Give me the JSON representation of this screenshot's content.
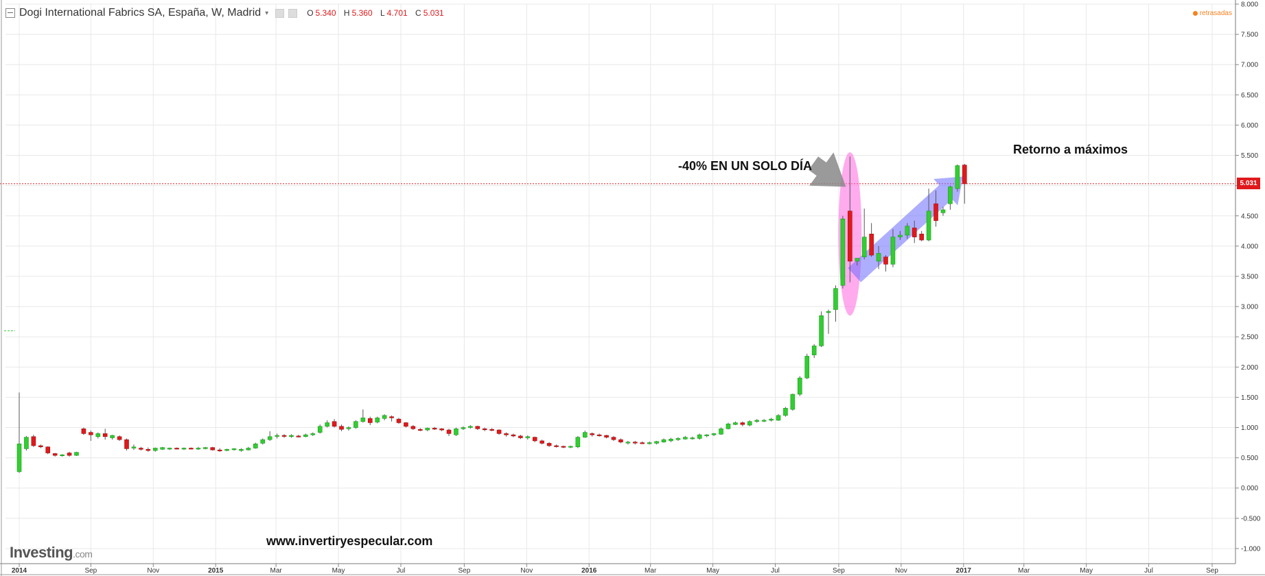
{
  "header": {
    "title": "Dogi International Fabrics SA, España, W, Madrid",
    "dropdown_glyph": "▾",
    "ohlc": [
      {
        "key": "O",
        "value": "5.340"
      },
      {
        "key": "H",
        "value": "5.360"
      },
      {
        "key": "L",
        "value": "4.701"
      },
      {
        "key": "C",
        "value": "5.031"
      }
    ]
  },
  "delayed_label": "retrasadas",
  "brand": {
    "name": "Investing",
    "suffix": ".com"
  },
  "website": "www.invertiryespecular.com",
  "annotations": {
    "drop_label": "-40% EN UN SOLO DÍA",
    "return_label": "Retorno a máximos"
  },
  "current_price_label": "5.031",
  "colors": {
    "up": "#32cd32",
    "down": "#e0191c",
    "grid": "#e8e8e8",
    "price_line": "#e0191c",
    "ellipse": "#ff66e0",
    "up_arrow": "#6b6bff",
    "drop_arrow": "#888888"
  },
  "chart_data": {
    "type": "candlestick",
    "interval": "weekly",
    "ylim": [
      -1.25,
      8.0
    ],
    "y_ticks": [
      -1.0,
      -0.5,
      0.0,
      0.5,
      1.0,
      1.5,
      2.0,
      2.5,
      3.0,
      3.5,
      4.0,
      4.5,
      5.0,
      5.5,
      6.0,
      6.5,
      7.0,
      7.5,
      8.0
    ],
    "y_tick_labels": [
      "-1.000",
      "-0.500",
      "0.000",
      "0.500",
      "1.000",
      "1.500",
      "2.000",
      "2.500",
      "3.000",
      "3.500",
      "4.000",
      "4.500",
      "5.000",
      "5.500",
      "6.000",
      "6.500",
      "7.000",
      "7.500",
      "8.000"
    ],
    "x_axis_labels": [
      {
        "label": "2014",
        "date": "2014-06-23",
        "bold": true
      },
      {
        "label": "Sep",
        "date": "2014-09-01",
        "bold": false
      },
      {
        "label": "Nov",
        "date": "2014-11-01",
        "bold": false
      },
      {
        "label": "2015",
        "date": "2015-01-01",
        "bold": true
      },
      {
        "label": "Mar",
        "date": "2015-03-01",
        "bold": false
      },
      {
        "label": "May",
        "date": "2015-05-01",
        "bold": false
      },
      {
        "label": "Jul",
        "date": "2015-07-01",
        "bold": false
      },
      {
        "label": "Sep",
        "date": "2015-09-01",
        "bold": false
      },
      {
        "label": "Nov",
        "date": "2015-11-01",
        "bold": false
      },
      {
        "label": "2016",
        "date": "2016-01-01",
        "bold": true
      },
      {
        "label": "Mar",
        "date": "2016-03-01",
        "bold": false
      },
      {
        "label": "May",
        "date": "2016-05-01",
        "bold": false
      },
      {
        "label": "Jul",
        "date": "2016-07-01",
        "bold": false
      },
      {
        "label": "Sep",
        "date": "2016-09-01",
        "bold": false
      },
      {
        "label": "Nov",
        "date": "2016-11-01",
        "bold": false
      },
      {
        "label": "2017",
        "date": "2017-01-01",
        "bold": true
      },
      {
        "label": "Mar",
        "date": "2017-03-01",
        "bold": false
      },
      {
        "label": "May",
        "date": "2017-05-01",
        "bold": false
      },
      {
        "label": "Jul",
        "date": "2017-07-01",
        "bold": false
      },
      {
        "label": "Sep",
        "date": "2017-09-01",
        "bold": false
      }
    ],
    "current_price": 5.031,
    "candles": [
      {
        "date": "2014-06-23",
        "o": 0.27,
        "h": 1.58,
        "l": 0.25,
        "c": 0.73
      },
      {
        "date": "2014-06-30",
        "o": 0.65,
        "h": 0.86,
        "l": 0.62,
        "c": 0.84
      },
      {
        "date": "2014-07-07",
        "o": 0.85,
        "h": 0.88,
        "l": 0.68,
        "c": 0.7
      },
      {
        "date": "2014-07-14",
        "o": 0.7,
        "h": 0.72,
        "l": 0.66,
        "c": 0.68
      },
      {
        "date": "2014-07-21",
        "o": 0.68,
        "h": 0.69,
        "l": 0.56,
        "c": 0.58
      },
      {
        "date": "2014-07-28",
        "o": 0.57,
        "h": 0.58,
        "l": 0.52,
        "c": 0.54
      },
      {
        "date": "2014-08-04",
        "o": 0.54,
        "h": 0.56,
        "l": 0.52,
        "c": 0.55
      },
      {
        "date": "2014-08-11",
        "o": 0.58,
        "h": 0.6,
        "l": 0.52,
        "c": 0.54
      },
      {
        "date": "2014-08-18",
        "o": 0.54,
        "h": 0.6,
        "l": 0.53,
        "c": 0.59
      },
      {
        "date": "2014-08-25",
        "o": 0.98,
        "h": 1.0,
        "l": 0.88,
        "c": 0.9
      },
      {
        "date": "2014-09-01",
        "o": 0.92,
        "h": 0.95,
        "l": 0.78,
        "c": 0.88
      },
      {
        "date": "2014-09-08",
        "o": 0.85,
        "h": 0.92,
        "l": 0.82,
        "c": 0.9
      },
      {
        "date": "2014-09-15",
        "o": 0.9,
        "h": 0.98,
        "l": 0.8,
        "c": 0.85
      },
      {
        "date": "2014-09-22",
        "o": 0.83,
        "h": 0.88,
        "l": 0.8,
        "c": 0.87
      },
      {
        "date": "2014-09-29",
        "o": 0.85,
        "h": 0.87,
        "l": 0.78,
        "c": 0.8
      },
      {
        "date": "2014-10-06",
        "o": 0.8,
        "h": 0.82,
        "l": 0.62,
        "c": 0.65
      },
      {
        "date": "2014-10-13",
        "o": 0.66,
        "h": 0.72,
        "l": 0.63,
        "c": 0.68
      },
      {
        "date": "2014-10-20",
        "o": 0.66,
        "h": 0.68,
        "l": 0.62,
        "c": 0.64
      },
      {
        "date": "2014-10-27",
        "o": 0.64,
        "h": 0.67,
        "l": 0.6,
        "c": 0.62
      },
      {
        "date": "2014-11-03",
        "o": 0.62,
        "h": 0.67,
        "l": 0.6,
        "c": 0.66
      },
      {
        "date": "2014-11-10",
        "o": 0.64,
        "h": 0.68,
        "l": 0.63,
        "c": 0.67
      },
      {
        "date": "2014-11-17",
        "o": 0.65,
        "h": 0.67,
        "l": 0.63,
        "c": 0.66
      },
      {
        "date": "2014-11-24",
        "o": 0.66,
        "h": 0.67,
        "l": 0.64,
        "c": 0.65
      },
      {
        "date": "2014-12-01",
        "o": 0.65,
        "h": 0.67,
        "l": 0.63,
        "c": 0.66
      },
      {
        "date": "2014-12-08",
        "o": 0.66,
        "h": 0.67,
        "l": 0.64,
        "c": 0.65
      },
      {
        "date": "2014-12-15",
        "o": 0.65,
        "h": 0.68,
        "l": 0.63,
        "c": 0.66
      },
      {
        "date": "2014-12-22",
        "o": 0.65,
        "h": 0.68,
        "l": 0.64,
        "c": 0.67
      },
      {
        "date": "2014-12-29",
        "o": 0.67,
        "h": 0.68,
        "l": 0.62,
        "c": 0.63
      },
      {
        "date": "2015-01-05",
        "o": 0.63,
        "h": 0.66,
        "l": 0.6,
        "c": 0.62
      },
      {
        "date": "2015-01-12",
        "o": 0.62,
        "h": 0.65,
        "l": 0.61,
        "c": 0.64
      },
      {
        "date": "2015-01-19",
        "o": 0.64,
        "h": 0.66,
        "l": 0.62,
        "c": 0.65
      },
      {
        "date": "2015-01-26",
        "o": 0.62,
        "h": 0.66,
        "l": 0.6,
        "c": 0.64
      },
      {
        "date": "2015-02-02",
        "o": 0.63,
        "h": 0.68,
        "l": 0.62,
        "c": 0.66
      },
      {
        "date": "2015-02-09",
        "o": 0.66,
        "h": 0.75,
        "l": 0.65,
        "c": 0.73
      },
      {
        "date": "2015-02-16",
        "o": 0.74,
        "h": 0.82,
        "l": 0.72,
        "c": 0.8
      },
      {
        "date": "2015-02-23",
        "o": 0.8,
        "h": 0.94,
        "l": 0.78,
        "c": 0.85
      },
      {
        "date": "2015-03-02",
        "o": 0.86,
        "h": 0.9,
        "l": 0.82,
        "c": 0.87
      },
      {
        "date": "2015-03-09",
        "o": 0.87,
        "h": 0.89,
        "l": 0.83,
        "c": 0.86
      },
      {
        "date": "2015-03-16",
        "o": 0.85,
        "h": 0.89,
        "l": 0.83,
        "c": 0.87
      },
      {
        "date": "2015-03-23",
        "o": 0.86,
        "h": 0.88,
        "l": 0.84,
        "c": 0.85
      },
      {
        "date": "2015-03-30",
        "o": 0.85,
        "h": 0.9,
        "l": 0.84,
        "c": 0.88
      },
      {
        "date": "2015-04-06",
        "o": 0.88,
        "h": 0.92,
        "l": 0.86,
        "c": 0.9
      },
      {
        "date": "2015-04-13",
        "o": 0.92,
        "h": 1.05,
        "l": 0.9,
        "c": 1.02
      },
      {
        "date": "2015-04-20",
        "o": 1.02,
        "h": 1.12,
        "l": 1.0,
        "c": 1.08
      },
      {
        "date": "2015-04-27",
        "o": 1.1,
        "h": 1.14,
        "l": 1.0,
        "c": 1.02
      },
      {
        "date": "2015-05-04",
        "o": 1.02,
        "h": 1.05,
        "l": 0.94,
        "c": 0.97
      },
      {
        "date": "2015-05-11",
        "o": 0.98,
        "h": 1.02,
        "l": 0.95,
        "c": 1.0
      },
      {
        "date": "2015-05-18",
        "o": 1.0,
        "h": 1.12,
        "l": 0.98,
        "c": 1.1
      },
      {
        "date": "2015-05-25",
        "o": 1.1,
        "h": 1.3,
        "l": 1.08,
        "c": 1.16
      },
      {
        "date": "2015-06-01",
        "o": 1.15,
        "h": 1.18,
        "l": 1.04,
        "c": 1.08
      },
      {
        "date": "2015-06-08",
        "o": 1.09,
        "h": 1.18,
        "l": 1.07,
        "c": 1.16
      },
      {
        "date": "2015-06-15",
        "o": 1.15,
        "h": 1.22,
        "l": 1.12,
        "c": 1.2
      },
      {
        "date": "2015-06-22",
        "o": 1.18,
        "h": 1.2,
        "l": 1.1,
        "c": 1.16
      },
      {
        "date": "2015-06-29",
        "o": 1.14,
        "h": 1.16,
        "l": 1.06,
        "c": 1.08
      },
      {
        "date": "2015-07-06",
        "o": 1.08,
        "h": 1.09,
        "l": 1.0,
        "c": 1.02
      },
      {
        "date": "2015-07-13",
        "o": 1.02,
        "h": 1.04,
        "l": 0.96,
        "c": 0.98
      },
      {
        "date": "2015-07-20",
        "o": 0.97,
        "h": 0.99,
        "l": 0.94,
        "c": 0.96
      },
      {
        "date": "2015-07-27",
        "o": 0.96,
        "h": 1.0,
        "l": 0.94,
        "c": 0.99
      },
      {
        "date": "2015-08-03",
        "o": 0.99,
        "h": 1.01,
        "l": 0.96,
        "c": 0.98
      },
      {
        "date": "2015-08-10",
        "o": 0.98,
        "h": 0.99,
        "l": 0.94,
        "c": 0.96
      },
      {
        "date": "2015-08-17",
        "o": 0.96,
        "h": 0.98,
        "l": 0.86,
        "c": 0.9
      },
      {
        "date": "2015-08-24",
        "o": 0.88,
        "h": 1.0,
        "l": 0.86,
        "c": 0.98
      },
      {
        "date": "2015-08-31",
        "o": 0.98,
        "h": 1.02,
        "l": 0.96,
        "c": 1.0
      },
      {
        "date": "2015-09-07",
        "o": 1.0,
        "h": 1.04,
        "l": 0.98,
        "c": 1.02
      },
      {
        "date": "2015-09-14",
        "o": 1.02,
        "h": 1.03,
        "l": 0.96,
        "c": 0.98
      },
      {
        "date": "2015-09-21",
        "o": 0.98,
        "h": 1.0,
        "l": 0.94,
        "c": 0.97
      },
      {
        "date": "2015-09-28",
        "o": 0.97,
        "h": 0.99,
        "l": 0.94,
        "c": 0.96
      },
      {
        "date": "2015-10-05",
        "o": 0.96,
        "h": 0.97,
        "l": 0.88,
        "c": 0.9
      },
      {
        "date": "2015-10-12",
        "o": 0.9,
        "h": 0.92,
        "l": 0.85,
        "c": 0.88
      },
      {
        "date": "2015-10-19",
        "o": 0.88,
        "h": 0.9,
        "l": 0.84,
        "c": 0.86
      },
      {
        "date": "2015-10-26",
        "o": 0.86,
        "h": 0.88,
        "l": 0.81,
        "c": 0.83
      },
      {
        "date": "2015-11-02",
        "o": 0.83,
        "h": 0.87,
        "l": 0.8,
        "c": 0.85
      },
      {
        "date": "2015-11-09",
        "o": 0.84,
        "h": 0.85,
        "l": 0.76,
        "c": 0.78
      },
      {
        "date": "2015-11-16",
        "o": 0.78,
        "h": 0.8,
        "l": 0.72,
        "c": 0.74
      },
      {
        "date": "2015-11-23",
        "o": 0.74,
        "h": 0.76,
        "l": 0.68,
        "c": 0.7
      },
      {
        "date": "2015-11-30",
        "o": 0.7,
        "h": 0.72,
        "l": 0.67,
        "c": 0.69
      },
      {
        "date": "2015-12-07",
        "o": 0.69,
        "h": 0.7,
        "l": 0.66,
        "c": 0.68
      },
      {
        "date": "2015-12-14",
        "o": 0.68,
        "h": 0.7,
        "l": 0.66,
        "c": 0.69
      },
      {
        "date": "2015-12-21",
        "o": 0.68,
        "h": 0.86,
        "l": 0.66,
        "c": 0.84
      },
      {
        "date": "2015-12-28",
        "o": 0.84,
        "h": 0.95,
        "l": 0.83,
        "c": 0.92
      },
      {
        "date": "2016-01-04",
        "o": 0.9,
        "h": 0.92,
        "l": 0.85,
        "c": 0.88
      },
      {
        "date": "2016-01-11",
        "o": 0.88,
        "h": 0.9,
        "l": 0.85,
        "c": 0.87
      },
      {
        "date": "2016-01-18",
        "o": 0.87,
        "h": 0.88,
        "l": 0.82,
        "c": 0.84
      },
      {
        "date": "2016-01-25",
        "o": 0.84,
        "h": 0.86,
        "l": 0.78,
        "c": 0.8
      },
      {
        "date": "2016-02-01",
        "o": 0.8,
        "h": 0.82,
        "l": 0.74,
        "c": 0.76
      },
      {
        "date": "2016-02-08",
        "o": 0.75,
        "h": 0.78,
        "l": 0.72,
        "c": 0.76
      },
      {
        "date": "2016-02-15",
        "o": 0.76,
        "h": 0.78,
        "l": 0.72,
        "c": 0.75
      },
      {
        "date": "2016-02-22",
        "o": 0.75,
        "h": 0.77,
        "l": 0.73,
        "c": 0.74
      },
      {
        "date": "2016-02-29",
        "o": 0.74,
        "h": 0.77,
        "l": 0.72,
        "c": 0.75
      },
      {
        "date": "2016-03-07",
        "o": 0.74,
        "h": 0.78,
        "l": 0.72,
        "c": 0.77
      },
      {
        "date": "2016-03-14",
        "o": 0.76,
        "h": 0.82,
        "l": 0.75,
        "c": 0.8
      },
      {
        "date": "2016-03-21",
        "o": 0.78,
        "h": 0.83,
        "l": 0.76,
        "c": 0.81
      },
      {
        "date": "2016-03-28",
        "o": 0.8,
        "h": 0.84,
        "l": 0.78,
        "c": 0.82
      },
      {
        "date": "2016-04-04",
        "o": 0.81,
        "h": 0.86,
        "l": 0.8,
        "c": 0.84
      },
      {
        "date": "2016-04-11",
        "o": 0.82,
        "h": 0.85,
        "l": 0.8,
        "c": 0.83
      },
      {
        "date": "2016-04-18",
        "o": 0.82,
        "h": 0.9,
        "l": 0.8,
        "c": 0.88
      },
      {
        "date": "2016-04-25",
        "o": 0.87,
        "h": 0.89,
        "l": 0.84,
        "c": 0.88
      },
      {
        "date": "2016-05-02",
        "o": 0.88,
        "h": 0.91,
        "l": 0.86,
        "c": 0.9
      },
      {
        "date": "2016-05-09",
        "o": 0.89,
        "h": 1.0,
        "l": 0.88,
        "c": 0.98
      },
      {
        "date": "2016-05-16",
        "o": 0.98,
        "h": 1.08,
        "l": 0.97,
        "c": 1.06
      },
      {
        "date": "2016-05-23",
        "o": 1.05,
        "h": 1.1,
        "l": 1.04,
        "c": 1.08
      },
      {
        "date": "2016-05-30",
        "o": 1.08,
        "h": 1.1,
        "l": 1.02,
        "c": 1.05
      },
      {
        "date": "2016-06-06",
        "o": 1.04,
        "h": 1.12,
        "l": 1.02,
        "c": 1.1
      },
      {
        "date": "2016-06-13",
        "o": 1.1,
        "h": 1.14,
        "l": 1.08,
        "c": 1.12
      },
      {
        "date": "2016-06-20",
        "o": 1.11,
        "h": 1.14,
        "l": 1.09,
        "c": 1.12
      },
      {
        "date": "2016-06-27",
        "o": 1.12,
        "h": 1.16,
        "l": 1.1,
        "c": 1.14
      },
      {
        "date": "2016-07-04",
        "o": 1.12,
        "h": 1.22,
        "l": 1.11,
        "c": 1.2
      },
      {
        "date": "2016-07-11",
        "o": 1.2,
        "h": 1.34,
        "l": 1.18,
        "c": 1.32
      },
      {
        "date": "2016-07-18",
        "o": 1.3,
        "h": 1.56,
        "l": 1.28,
        "c": 1.55
      },
      {
        "date": "2016-07-25",
        "o": 1.55,
        "h": 1.85,
        "l": 1.52,
        "c": 1.82
      },
      {
        "date": "2016-08-01",
        "o": 1.82,
        "h": 2.22,
        "l": 1.8,
        "c": 2.18
      },
      {
        "date": "2016-08-08",
        "o": 2.2,
        "h": 2.38,
        "l": 2.15,
        "c": 2.35
      },
      {
        "date": "2016-08-15",
        "o": 2.35,
        "h": 2.92,
        "l": 2.33,
        "c": 2.85
      },
      {
        "date": "2016-08-22",
        "o": 2.9,
        "h": 2.95,
        "l": 2.55,
        "c": 2.92
      },
      {
        "date": "2016-08-29",
        "o": 2.95,
        "h": 3.35,
        "l": 2.75,
        "c": 3.3
      },
      {
        "date": "2016-09-05",
        "o": 3.35,
        "h": 4.5,
        "l": 3.3,
        "c": 4.45
      },
      {
        "date": "2016-09-12",
        "o": 4.58,
        "h": 5.48,
        "l": 3.4,
        "c": 3.75
      },
      {
        "date": "2016-09-19",
        "o": 3.75,
        "h": 3.8,
        "l": 3.68,
        "c": 3.8
      },
      {
        "date": "2016-09-26",
        "o": 3.82,
        "h": 4.62,
        "l": 3.78,
        "c": 4.15
      },
      {
        "date": "2016-10-03",
        "o": 4.2,
        "h": 4.38,
        "l": 3.82,
        "c": 3.85
      },
      {
        "date": "2016-10-10",
        "o": 3.75,
        "h": 4.0,
        "l": 3.62,
        "c": 3.88
      },
      {
        "date": "2016-10-17",
        "o": 3.82,
        "h": 3.85,
        "l": 3.58,
        "c": 3.7
      },
      {
        "date": "2016-10-24",
        "o": 3.7,
        "h": 4.28,
        "l": 3.65,
        "c": 4.15
      },
      {
        "date": "2016-10-31",
        "o": 4.15,
        "h": 4.25,
        "l": 4.1,
        "c": 4.18
      },
      {
        "date": "2016-11-07",
        "o": 4.18,
        "h": 4.38,
        "l": 4.12,
        "c": 4.33
      },
      {
        "date": "2016-11-14",
        "o": 4.3,
        "h": 4.42,
        "l": 4.05,
        "c": 4.15
      },
      {
        "date": "2016-11-21",
        "o": 4.2,
        "h": 4.25,
        "l": 4.08,
        "c": 4.1
      },
      {
        "date": "2016-11-28",
        "o": 4.1,
        "h": 4.95,
        "l": 4.08,
        "c": 4.58
      },
      {
        "date": "2016-12-05",
        "o": 4.7,
        "h": 4.92,
        "l": 4.32,
        "c": 4.42
      },
      {
        "date": "2016-12-12",
        "o": 4.55,
        "h": 4.65,
        "l": 4.5,
        "c": 4.6
      },
      {
        "date": "2016-12-19",
        "o": 4.7,
        "h": 5.0,
        "l": 4.6,
        "c": 4.98
      },
      {
        "date": "2016-12-26",
        "o": 4.95,
        "h": 5.35,
        "l": 4.9,
        "c": 5.33
      },
      {
        "date": "2017-01-02",
        "o": 5.34,
        "h": 5.36,
        "l": 4.7,
        "c": 5.03
      }
    ]
  }
}
